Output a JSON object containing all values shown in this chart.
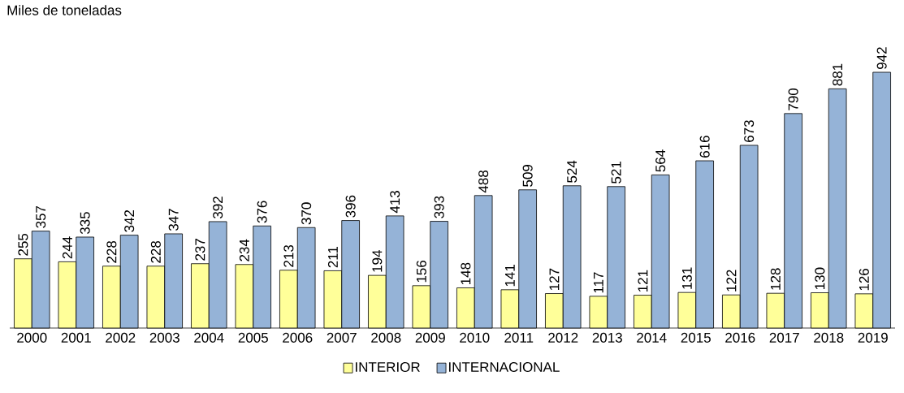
{
  "chart_data": {
    "type": "bar",
    "ylabel": "Miles de toneladas",
    "categories": [
      "2000",
      "2001",
      "2002",
      "2003",
      "2004",
      "2005",
      "2006",
      "2007",
      "2008",
      "2009",
      "2010",
      "2011",
      "2012",
      "2013",
      "2014",
      "2015",
      "2016",
      "2017",
      "2018",
      "2019"
    ],
    "series": [
      {
        "name": "INTERIOR",
        "color": "#ffff99",
        "values": [
          255,
          244,
          228,
          228,
          237,
          234,
          213,
          211,
          194,
          156,
          148,
          141,
          127,
          117,
          121,
          131,
          122,
          128,
          130,
          126
        ]
      },
      {
        "name": "INTERNACIONAL",
        "color": "#95b3d7",
        "values": [
          357,
          335,
          342,
          347,
          392,
          376,
          370,
          396,
          413,
          393,
          488,
          509,
          524,
          521,
          564,
          616,
          673,
          790,
          881,
          942
        ]
      }
    ],
    "data_labels": true,
    "legend": "bottom"
  }
}
